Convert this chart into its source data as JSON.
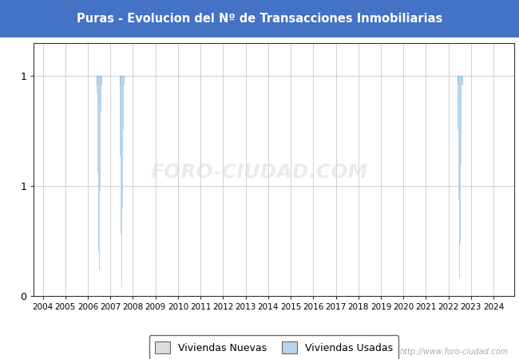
{
  "title": "Puras - Evolucion del Nº de Transacciones Inmobiliarias",
  "title_bg_color": "#4472c4",
  "title_text_color": "#ffffff",
  "bg_color": "#ffffff",
  "plot_bg_color": "#ffffff",
  "outer_bg_color": "#f5f5f5",
  "grid_color": "#d0d0d0",
  "start_year": 2004,
  "end_year": 2024,
  "viviendas_nuevas": {},
  "viviendas_usadas": {
    "2006": 1,
    "2007": 1,
    "2022": 1
  },
  "nuevas_color": "#dcdcdc",
  "usadas_color": "#b8d4eb",
  "nuevas_edge_color": "#aaaaaa",
  "usadas_edge_color": "#7bafd4",
  "watermark_text": "http://www.foro-ciudad.com",
  "watermark_color": "#cccccc",
  "foro_watermark": "FORO-CIUDAD.COM"
}
